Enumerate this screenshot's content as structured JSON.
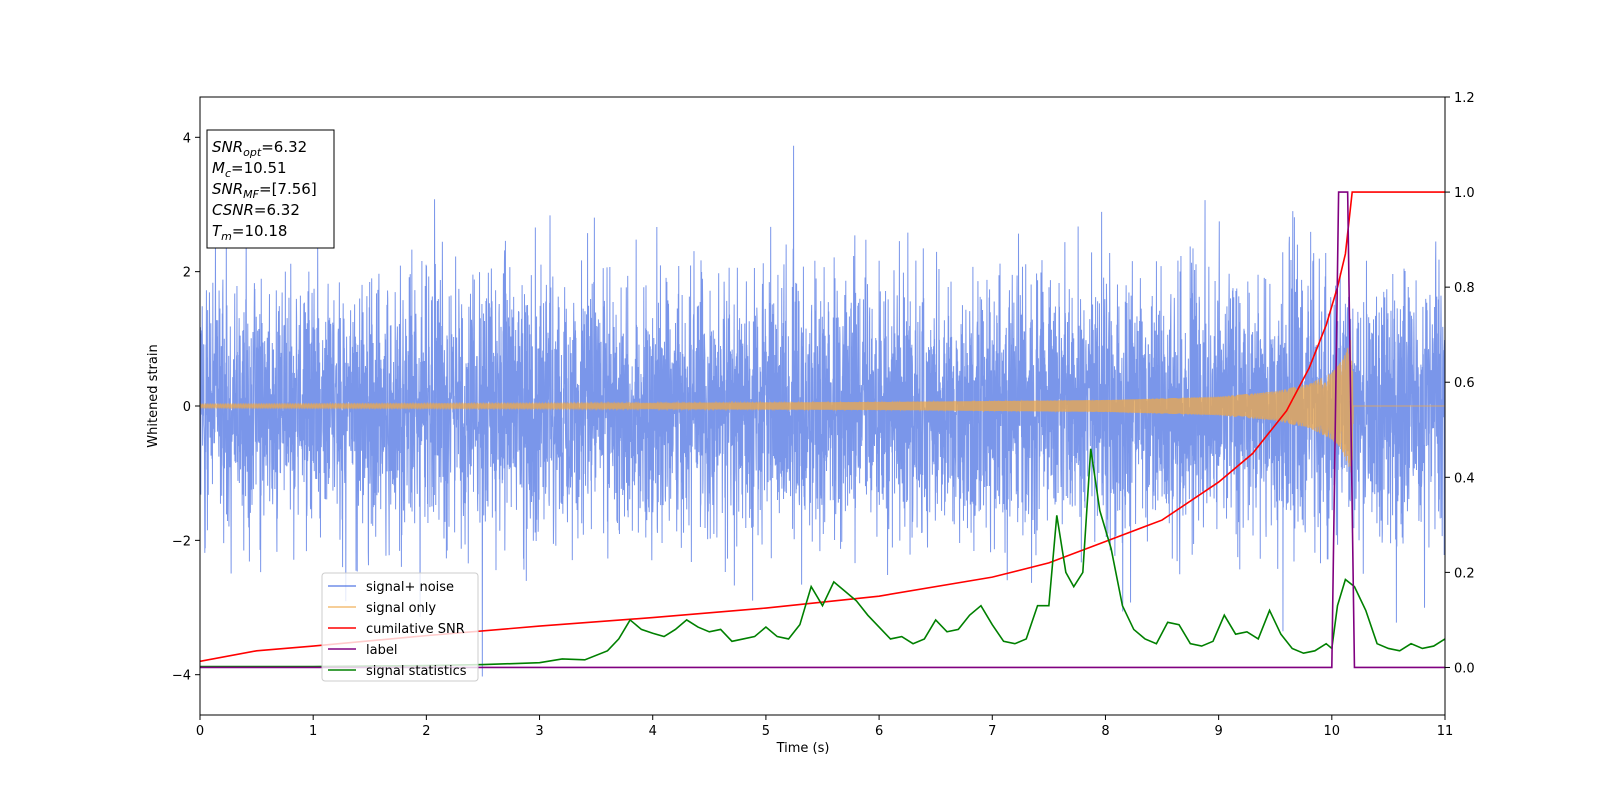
{
  "chart_data": {
    "type": "line",
    "xlabel": "Time (s)",
    "ylabel": "Whitened strain",
    "xlim": [
      0,
      11
    ],
    "ylim": [
      -4.6,
      4.6
    ],
    "ylim_right": [
      -0.1,
      1.2
    ],
    "x_ticks": [
      0,
      1,
      2,
      3,
      4,
      5,
      6,
      7,
      8,
      9,
      10,
      11
    ],
    "y_ticks_left": [
      -4,
      -2,
      0,
      2,
      4
    ],
    "y_ticks_right": [
      0.0,
      0.2,
      0.4,
      0.6,
      0.8,
      1.0,
      1.2
    ],
    "grid": false,
    "legend_position": "lower-left",
    "series": [
      {
        "name": "signal+ noise",
        "color": "#4169e1",
        "axis": "left",
        "description_values": {
          "noise_rms": 0.95,
          "max_peak": 4.15,
          "min_peak": -4.15
        }
      },
      {
        "name": "signal only",
        "color": "#f0a848",
        "axis": "left",
        "envelope": {
          "x": [
            0,
            3,
            6,
            8,
            9,
            9.5,
            9.8,
            10.0,
            10.1,
            10.18,
            10.19,
            11
          ],
          "amp": [
            0.03,
            0.04,
            0.06,
            0.09,
            0.14,
            0.22,
            0.33,
            0.5,
            0.7,
            1.05,
            0.0,
            0.0
          ]
        }
      },
      {
        "name": "cumilative SNR",
        "color": "#ff0000",
        "axis": "right",
        "x": [
          0,
          0.5,
          1,
          2,
          3,
          4,
          5,
          6,
          7,
          7.5,
          8,
          8.5,
          9,
          9.3,
          9.6,
          9.8,
          9.95,
          10.05,
          10.12,
          10.18,
          11
        ],
        "y": [
          0.013,
          0.035,
          0.045,
          0.067,
          0.087,
          0.105,
          0.125,
          0.15,
          0.19,
          0.22,
          0.265,
          0.31,
          0.39,
          0.45,
          0.54,
          0.63,
          0.72,
          0.8,
          0.87,
          1.0,
          1.0
        ]
      },
      {
        "name": "label",
        "color": "#800080",
        "axis": "right",
        "x": [
          0,
          10.0,
          10.06,
          10.14,
          10.2,
          11
        ],
        "y": [
          0,
          0,
          1,
          1,
          0,
          0
        ]
      },
      {
        "name": "signal statistics",
        "color": "#008000",
        "axis": "right",
        "x": [
          0,
          1,
          1.5,
          2,
          2.5,
          3,
          3.2,
          3.4,
          3.6,
          3.7,
          3.8,
          3.9,
          4.0,
          4.1,
          4.2,
          4.3,
          4.4,
          4.5,
          4.6,
          4.7,
          4.8,
          4.9,
          5.0,
          5.1,
          5.2,
          5.3,
          5.4,
          5.5,
          5.6,
          5.7,
          5.8,
          5.9,
          6.0,
          6.1,
          6.2,
          6.3,
          6.4,
          6.5,
          6.6,
          6.7,
          6.8,
          6.9,
          7.0,
          7.1,
          7.2,
          7.3,
          7.4,
          7.5,
          7.57,
          7.65,
          7.72,
          7.8,
          7.87,
          7.95,
          8.05,
          8.15,
          8.25,
          8.35,
          8.45,
          8.55,
          8.65,
          8.75,
          8.85,
          8.95,
          9.05,
          9.15,
          9.25,
          9.35,
          9.45,
          9.55,
          9.65,
          9.75,
          9.85,
          9.95,
          10.0,
          10.05,
          10.12,
          10.2,
          10.3,
          10.4,
          10.5,
          10.6,
          10.7,
          10.8,
          10.9,
          11.0
        ],
        "y": [
          0.002,
          0.002,
          0.003,
          0.004,
          0.006,
          0.01,
          0.018,
          0.016,
          0.035,
          0.06,
          0.1,
          0.08,
          0.072,
          0.065,
          0.08,
          0.1,
          0.085,
          0.075,
          0.08,
          0.055,
          0.06,
          0.065,
          0.085,
          0.065,
          0.06,
          0.09,
          0.17,
          0.13,
          0.18,
          0.16,
          0.14,
          0.11,
          0.085,
          0.06,
          0.065,
          0.05,
          0.06,
          0.1,
          0.075,
          0.08,
          0.11,
          0.13,
          0.09,
          0.055,
          0.05,
          0.06,
          0.13,
          0.13,
          0.32,
          0.2,
          0.17,
          0.2,
          0.46,
          0.33,
          0.25,
          0.13,
          0.08,
          0.06,
          0.05,
          0.095,
          0.09,
          0.05,
          0.045,
          0.055,
          0.11,
          0.07,
          0.075,
          0.06,
          0.12,
          0.07,
          0.04,
          0.03,
          0.035,
          0.05,
          0.04,
          0.13,
          0.185,
          0.17,
          0.12,
          0.05,
          0.04,
          0.035,
          0.05,
          0.04,
          0.045,
          0.06
        ]
      }
    ],
    "annotation_box": {
      "lines": [
        {
          "var": "SNR",
          "sub": "opt",
          "value": "=6.32"
        },
        {
          "var": "M",
          "sub": "c",
          "value": "=10.51"
        },
        {
          "var": "SNR",
          "sub": "MF",
          "value": "=[7.56]"
        },
        {
          "var": "CSNR",
          "sub": "",
          "value": "=6.32"
        },
        {
          "var": "T",
          "sub": "m",
          "value": "=10.18"
        }
      ]
    }
  }
}
